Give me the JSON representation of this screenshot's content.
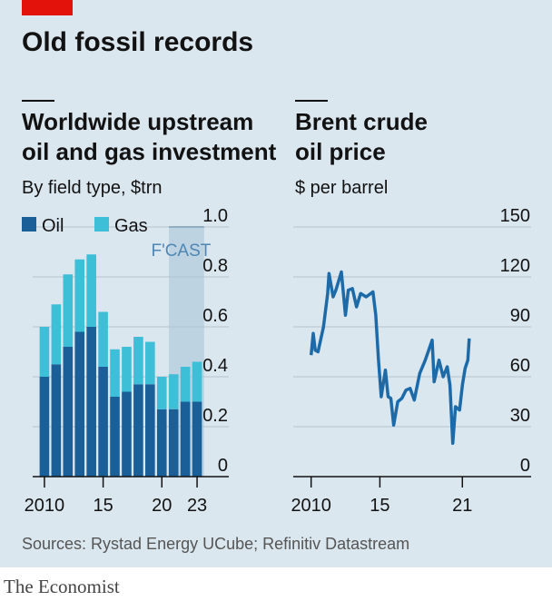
{
  "title": "Old fossil records",
  "source": "Sources: Rystad Energy UCube; Refinitiv Datastream",
  "brand": "The Economist",
  "chart_data": [
    {
      "type": "bar",
      "stacked": true,
      "title": [
        "Worldwide upstream",
        "oil and gas investment"
      ],
      "subtitle": "By field type, $trn",
      "x": [
        2010,
        2011,
        2012,
        2013,
        2014,
        2015,
        2016,
        2017,
        2018,
        2019,
        2020,
        2021,
        2022,
        2023
      ],
      "series": [
        {
          "name": "Oil",
          "color": "#1b5f98",
          "values": [
            0.4,
            0.45,
            0.52,
            0.58,
            0.6,
            0.44,
            0.32,
            0.34,
            0.37,
            0.37,
            0.27,
            0.27,
            0.3,
            0.3
          ]
        },
        {
          "name": "Gas",
          "color": "#3dbfd8",
          "values": [
            0.2,
            0.24,
            0.29,
            0.29,
            0.29,
            0.22,
            0.19,
            0.18,
            0.19,
            0.17,
            0.13,
            0.14,
            0.14,
            0.16
          ]
        }
      ],
      "forecast": {
        "label": "F'CAST",
        "xlim": [
          2021,
          2023
        ]
      },
      "xlim": [
        2009,
        2024
      ],
      "xticks": [
        2010,
        {
          "value": 2015,
          "label": "15"
        },
        {
          "value": 2020,
          "label": "20"
        },
        {
          "value": 2023,
          "label": "23"
        }
      ],
      "ylim": [
        0,
        1
      ],
      "yticks": [
        0,
        0.2,
        0.4,
        0.6,
        0.8,
        {
          "value": 1,
          "label": "1.0"
        }
      ],
      "grid": true
    },
    {
      "type": "line",
      "title": [
        "Brent crude",
        "oil price"
      ],
      "subtitle": "$ per barrel",
      "x": [
        2010.0,
        2010.15,
        2010.3,
        2010.5,
        2010.9,
        2011.2,
        2011.3,
        2011.6,
        2011.8,
        2012.2,
        2012.5,
        2012.7,
        2013.0,
        2013.3,
        2013.6,
        2014.0,
        2014.5,
        2014.7,
        2014.9,
        2015.1,
        2015.4,
        2015.6,
        2015.8,
        2016.0,
        2016.3,
        2016.6,
        2016.9,
        2017.2,
        2017.5,
        2017.9,
        2018.3,
        2018.8,
        2018.95,
        2019.3,
        2019.6,
        2019.9,
        2020.1,
        2020.3,
        2020.5,
        2020.8,
        2021.0,
        2021.2,
        2021.4,
        2021.5
      ],
      "series": [
        {
          "name": "Brent",
          "color": "#1d6aa8",
          "values": [
            73,
            86,
            76,
            75,
            90,
            110,
            122,
            108,
            112,
            123,
            97,
            112,
            113,
            102,
            110,
            108,
            111,
            97,
            70,
            48,
            64,
            48,
            47,
            31,
            45,
            47,
            52,
            53,
            46,
            62,
            70,
            82,
            57,
            70,
            60,
            66,
            55,
            20,
            42,
            40,
            55,
            65,
            70,
            83
          ]
        }
      ],
      "xlim": [
        2008.7,
        2026
      ],
      "xticks": [
        2010,
        {
          "value": 2015,
          "label": "15"
        },
        {
          "value": 2021,
          "label": "21"
        }
      ],
      "ylim": [
        0,
        150
      ],
      "yticks": [
        0,
        30,
        60,
        90,
        120,
        150
      ],
      "grid": true
    }
  ]
}
